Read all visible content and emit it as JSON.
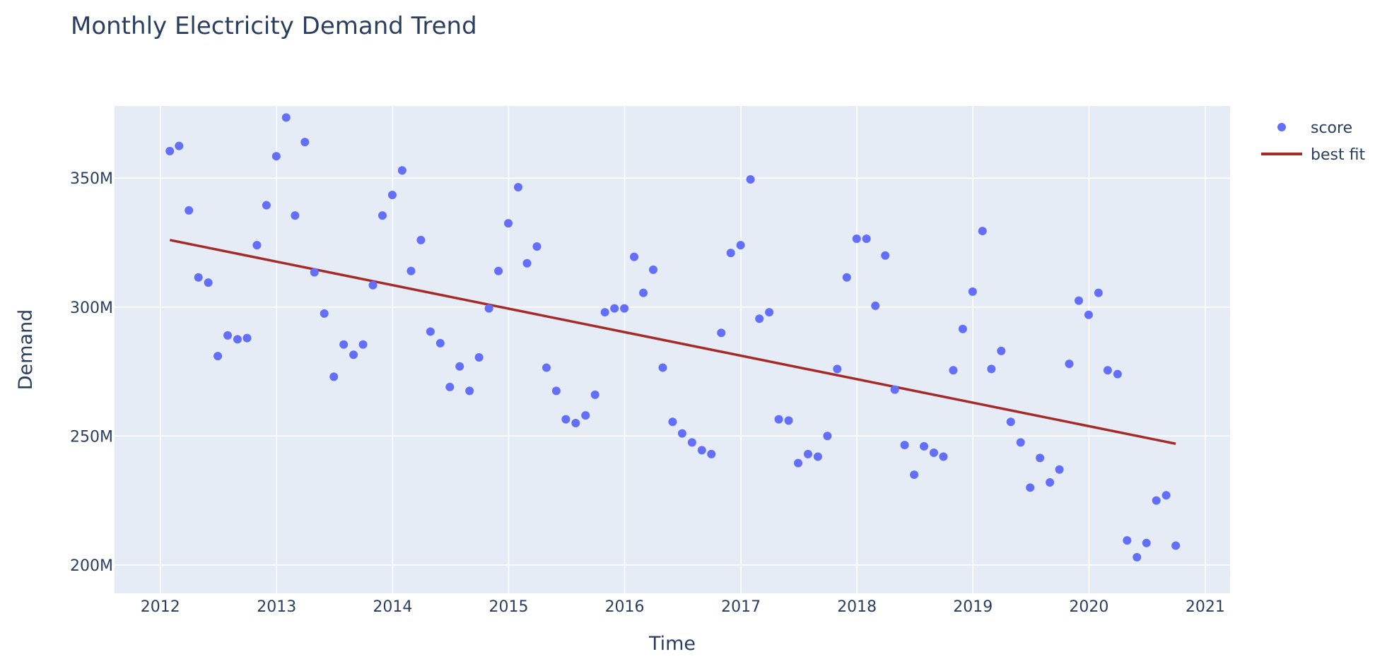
{
  "chart_data": {
    "type": "scatter",
    "title": "Monthly Electricity Demand Trend",
    "xlabel": "Time",
    "ylabel": "Demand",
    "xlim": [
      "2011-08-10",
      "2021-03-20"
    ],
    "ylim": [
      189,
      378
    ],
    "x_ticks": [
      "2012",
      "2013",
      "2014",
      "2015",
      "2016",
      "2017",
      "2018",
      "2019",
      "2020",
      "2021"
    ],
    "x_tick_dates": [
      "2012-01-01",
      "2013-01-01",
      "2014-01-01",
      "2015-01-01",
      "2016-01-01",
      "2017-01-01",
      "2018-01-01",
      "2019-01-01",
      "2020-01-01",
      "2021-01-01"
    ],
    "y_ticks": [
      200,
      250,
      300,
      350
    ],
    "y_tick_labels": [
      "200M",
      "250M",
      "300M",
      "350M"
    ],
    "y_unit": "M",
    "grid": true,
    "legend_position": "top-right",
    "colors": {
      "score": "#636efa",
      "best_fit": "#a52a2a",
      "plot_bg": "#e5ecf6"
    },
    "series": [
      {
        "name": "score",
        "mode": "markers",
        "x": [
          "2012-01-31",
          "2012-02-29",
          "2012-03-31",
          "2012-04-30",
          "2012-05-31",
          "2012-06-30",
          "2012-07-31",
          "2012-08-31",
          "2012-09-30",
          "2012-10-31",
          "2012-11-30",
          "2012-12-31",
          "2013-01-31",
          "2013-02-28",
          "2013-03-31",
          "2013-04-30",
          "2013-05-31",
          "2013-06-30",
          "2013-07-31",
          "2013-08-31",
          "2013-09-30",
          "2013-10-31",
          "2013-11-30",
          "2013-12-31",
          "2014-01-31",
          "2014-02-28",
          "2014-03-31",
          "2014-04-30",
          "2014-05-31",
          "2014-06-30",
          "2014-07-31",
          "2014-08-31",
          "2014-09-30",
          "2014-10-31",
          "2014-11-30",
          "2014-12-31",
          "2015-01-31",
          "2015-02-28",
          "2015-03-31",
          "2015-04-30",
          "2015-05-31",
          "2015-06-30",
          "2015-07-31",
          "2015-08-31",
          "2015-09-30",
          "2015-10-31",
          "2015-11-30",
          "2015-12-31",
          "2016-01-31",
          "2016-02-29",
          "2016-03-31",
          "2016-04-30",
          "2016-05-31",
          "2016-06-30",
          "2016-07-31",
          "2016-08-31",
          "2016-09-30",
          "2016-10-31",
          "2016-11-30",
          "2016-12-31",
          "2017-01-31",
          "2017-02-28",
          "2017-03-31",
          "2017-04-30",
          "2017-05-31",
          "2017-06-30",
          "2017-07-31",
          "2017-08-31",
          "2017-09-30",
          "2017-10-31",
          "2017-11-30",
          "2017-12-31",
          "2018-01-31",
          "2018-02-28",
          "2018-03-31",
          "2018-04-30",
          "2018-05-31",
          "2018-06-30",
          "2018-07-31",
          "2018-08-31",
          "2018-09-30",
          "2018-10-31",
          "2018-11-30",
          "2018-12-31",
          "2019-01-31",
          "2019-02-28",
          "2019-03-31",
          "2019-04-30",
          "2019-05-31",
          "2019-06-30",
          "2019-07-31",
          "2019-08-31",
          "2019-09-30",
          "2019-10-31",
          "2019-11-30",
          "2019-12-31",
          "2020-01-31",
          "2020-02-29",
          "2020-03-31",
          "2020-04-30",
          "2020-05-31",
          "2020-06-30",
          "2020-07-31",
          "2020-08-31",
          "2020-09-30"
        ],
        "y": [
          360.5,
          362.5,
          337.5,
          311.5,
          309.5,
          281,
          289,
          287.5,
          288,
          324,
          339.5,
          358.5,
          373.5,
          335.5,
          364,
          313.5,
          297.5,
          273,
          285.5,
          281.5,
          285.5,
          308.5,
          335.5,
          343.5,
          353,
          314,
          326,
          290.5,
          286,
          269,
          277,
          267.5,
          280.5,
          299.5,
          314,
          332.5,
          346.5,
          317,
          323.5,
          276.5,
          267.5,
          256.5,
          255,
          258,
          266,
          298,
          299.5,
          299.5,
          319.5,
          305.5,
          314.5,
          276.5,
          255.5,
          251,
          247.5,
          244.5,
          243,
          290,
          321,
          324,
          349.5,
          295.5,
          298,
          256.5,
          256,
          239.5,
          243,
          242,
          250,
          276,
          311.5,
          326.5,
          326.5,
          300.5,
          320,
          268,
          246.5,
          235,
          246,
          243.5,
          242,
          275.5,
          291.5,
          306,
          329.5,
          276,
          283,
          255.5,
          247.5,
          230,
          241.5,
          232,
          237,
          278,
          302.5,
          297,
          305.5,
          275.5,
          274,
          209.5,
          203,
          208.5,
          225,
          227,
          207.5
        ]
      },
      {
        "name": "best fit",
        "mode": "lines",
        "x": [
          "2012-01-31",
          "2020-09-30"
        ],
        "y": [
          326,
          247
        ]
      }
    ]
  }
}
